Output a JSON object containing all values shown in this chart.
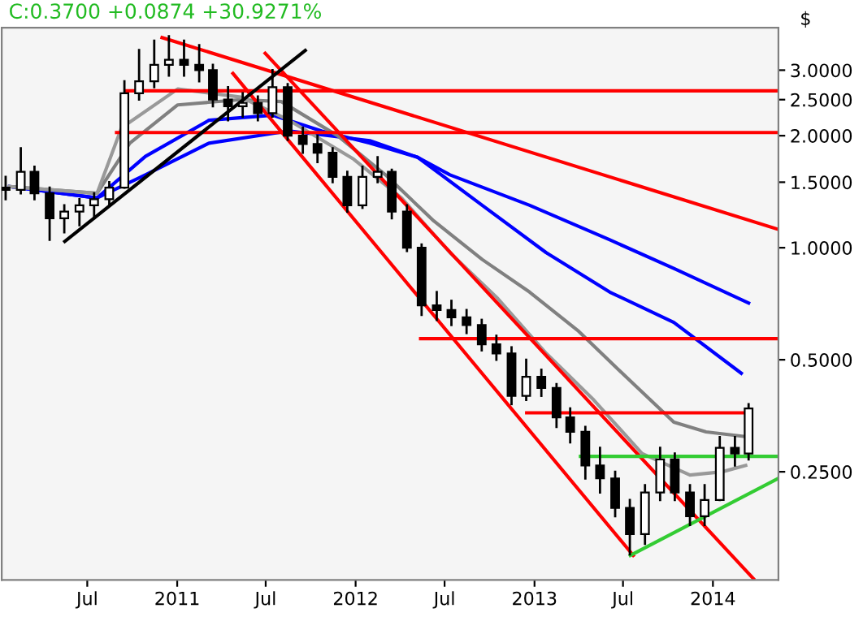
{
  "chart_data": {
    "type": "candlestick",
    "title": "C:0.3700 +0.0874 +30.9271%",
    "ylabel": "$",
    "x": [
      "2010-01-15",
      "2010-02-15",
      "2010-03-15",
      "2010-04-15",
      "2010-05-15",
      "2010-06-15",
      "2010-07-15",
      "2010-08-15",
      "2010-09-15",
      "2010-10-15",
      "2010-11-15",
      "2010-12-15",
      "2011-01-15",
      "2011-02-15",
      "2011-03-15",
      "2011-04-15",
      "2011-05-15",
      "2011-06-15",
      "2011-07-15",
      "2011-08-15",
      "2011-09-15",
      "2011-10-15",
      "2011-11-15",
      "2011-12-15",
      "2012-01-15",
      "2012-02-15",
      "2012-03-15",
      "2012-04-15",
      "2012-05-15",
      "2012-06-15",
      "2012-07-15",
      "2012-08-15",
      "2012-09-15",
      "2012-10-15",
      "2012-11-15",
      "2012-12-15",
      "2013-01-15",
      "2013-02-15",
      "2013-03-15",
      "2013-04-15",
      "2013-05-15",
      "2013-06-15",
      "2013-07-15",
      "2013-08-15",
      "2013-09-15",
      "2013-10-15",
      "2013-11-15",
      "2013-12-15",
      "2014-01-15",
      "2014-02-15",
      "2014-03-15"
    ],
    "ohlc": [
      [
        1.45,
        1.55,
        1.35,
        1.43
      ],
      [
        1.43,
        1.85,
        1.4,
        1.6
      ],
      [
        1.6,
        1.65,
        1.35,
        1.4
      ],
      [
        1.4,
        1.45,
        1.05,
        1.2
      ],
      [
        1.2,
        1.3,
        1.1,
        1.25
      ],
      [
        1.25,
        1.35,
        1.15,
        1.3
      ],
      [
        1.3,
        1.4,
        1.2,
        1.35
      ],
      [
        1.35,
        1.5,
        1.3,
        1.45
      ],
      [
        1.45,
        2.8,
        1.45,
        2.6
      ],
      [
        2.6,
        3.4,
        2.5,
        2.8
      ],
      [
        2.8,
        3.6,
        2.7,
        3.1
      ],
      [
        3.1,
        3.7,
        2.9,
        3.2
      ],
      [
        3.2,
        3.6,
        2.9,
        3.1
      ],
      [
        3.1,
        3.5,
        2.8,
        3.0
      ],
      [
        3.0,
        3.1,
        2.4,
        2.5
      ],
      [
        2.5,
        2.7,
        2.2,
        2.4
      ],
      [
        2.4,
        2.6,
        2.25,
        2.45
      ],
      [
        2.45,
        2.55,
        2.2,
        2.3
      ],
      [
        2.3,
        3.0,
        2.25,
        2.7
      ],
      [
        2.7,
        2.75,
        1.95,
        2.0
      ],
      [
        2.0,
        2.1,
        1.8,
        1.9
      ],
      [
        1.9,
        2.0,
        1.7,
        1.8
      ],
      [
        1.8,
        1.85,
        1.5,
        1.55
      ],
      [
        1.55,
        1.6,
        1.25,
        1.3
      ],
      [
        1.3,
        1.65,
        1.28,
        1.55
      ],
      [
        1.55,
        1.75,
        1.5,
        1.6
      ],
      [
        1.6,
        1.62,
        1.2,
        1.25
      ],
      [
        1.25,
        1.3,
        0.98,
        1.0
      ],
      [
        1.0,
        1.02,
        0.66,
        0.7
      ],
      [
        0.7,
        0.76,
        0.64,
        0.68
      ],
      [
        0.68,
        0.72,
        0.62,
        0.65
      ],
      [
        0.65,
        0.68,
        0.59,
        0.62
      ],
      [
        0.62,
        0.64,
        0.53,
        0.55
      ],
      [
        0.55,
        0.58,
        0.5,
        0.52
      ],
      [
        0.52,
        0.54,
        0.38,
        0.4
      ],
      [
        0.4,
        0.5,
        0.39,
        0.45
      ],
      [
        0.45,
        0.47,
        0.4,
        0.42
      ],
      [
        0.42,
        0.43,
        0.33,
        0.35
      ],
      [
        0.35,
        0.37,
        0.3,
        0.32
      ],
      [
        0.32,
        0.33,
        0.24,
        0.26
      ],
      [
        0.26,
        0.29,
        0.22,
        0.24
      ],
      [
        0.24,
        0.25,
        0.19,
        0.2
      ],
      [
        0.2,
        0.21,
        0.15,
        0.17
      ],
      [
        0.17,
        0.23,
        0.16,
        0.22
      ],
      [
        0.22,
        0.29,
        0.21,
        0.27
      ],
      [
        0.27,
        0.28,
        0.21,
        0.22
      ],
      [
        0.22,
        0.23,
        0.18,
        0.19
      ],
      [
        0.19,
        0.23,
        0.18,
        0.21
      ],
      [
        0.21,
        0.31,
        0.21,
        0.29
      ],
      [
        0.29,
        0.31,
        0.26,
        0.28
      ],
      [
        0.28,
        0.38,
        0.27,
        0.37
      ]
    ],
    "series": [
      {
        "type": "line",
        "color": "#0000ff",
        "x": [
          "2010-01-23",
          "2010-07-21",
          "2010-10-28",
          "2011-03-07",
          "2011-08-18",
          "2012-01-30",
          "2012-05-07",
          "2012-07-12",
          "2012-12-22",
          "2013-06-04",
          "2013-10-13",
          "2014-03-15"
        ],
        "values": [
          1.46,
          1.36,
          1.57,
          1.91,
          2.06,
          1.94,
          1.75,
          1.57,
          1.3,
          1.05,
          0.88,
          0.71
        ]
      },
      {
        "type": "line",
        "color": "#0000ff",
        "x": [
          "2010-01-23",
          "2010-07-21",
          "2010-10-28",
          "2011-03-07",
          "2011-07-16",
          "2011-10-23",
          "2012-01-30",
          "2012-05-07",
          "2012-09-16",
          "2013-01-25",
          "2013-06-04",
          "2013-10-13",
          "2014-02-28"
        ],
        "values": [
          1.46,
          1.36,
          1.76,
          2.2,
          2.27,
          2.06,
          1.91,
          1.75,
          1.3,
          0.97,
          0.76,
          0.63,
          0.46
        ]
      },
      {
        "type": "line",
        "color": "#808080",
        "x": [
          "2010-01-23",
          "2010-07-21",
          "2010-09-26",
          "2011-01-02",
          "2011-05-11",
          "2011-08-02",
          "2011-11-25",
          "2012-03-02",
          "2012-06-09",
          "2012-09-16",
          "2012-12-22",
          "2013-03-30",
          "2013-07-07",
          "2013-10-13",
          "2013-12-18",
          "2014-03-15"
        ],
        "values": [
          1.46,
          1.4,
          1.91,
          2.42,
          2.5,
          2.47,
          2.0,
          1.57,
          1.18,
          0.93,
          0.76,
          0.6,
          0.45,
          0.34,
          0.32,
          0.31
        ]
      },
      {
        "type": "line",
        "color": "#999999",
        "x": [
          "2010-01-23",
          "2010-07-21",
          "2010-09-09",
          "2011-01-02",
          "2011-05-11",
          "2011-08-18",
          "2011-12-28",
          "2012-04-04",
          "2012-07-12",
          "2012-10-18",
          "2013-01-25",
          "2013-05-02",
          "2013-08-09",
          "2013-11-15",
          "2014-01-20",
          "2014-03-09"
        ],
        "values": [
          1.46,
          1.4,
          2.1,
          2.67,
          2.54,
          2.2,
          1.73,
          1.36,
          0.97,
          0.73,
          0.52,
          0.39,
          0.28,
          0.245,
          0.25,
          0.26
        ]
      },
      {
        "type": "line",
        "color": "#ff0000",
        "x": [
          "2011-04-25",
          "2013-07-22"
        ],
        "values": [
          2.94,
          0.149
        ]
      },
      {
        "type": "line",
        "color": "#ff0000",
        "x": [
          "2011-06-30",
          "2014-03-25"
        ],
        "values": [
          3.33,
          0.129
        ]
      },
      {
        "type": "line",
        "color": "#ff0000",
        "x": [
          "2010-12-01",
          "2014-05-15"
        ],
        "values": [
          3.67,
          1.12
        ]
      },
      {
        "type": "line",
        "color": "#ff0000",
        "x": [
          "2010-09-19",
          "2014-05-15"
        ],
        "values": [
          2.64,
          2.64
        ]
      },
      {
        "type": "line",
        "color": "#ff0000",
        "x": [
          "2010-08-30",
          "2014-05-15"
        ],
        "values": [
          2.04,
          2.04
        ]
      },
      {
        "type": "line",
        "color": "#ff0000",
        "x": [
          "2012-05-13",
          "2014-05-15"
        ],
        "values": [
          0.57,
          0.57
        ]
      },
      {
        "type": "line",
        "color": "#ff0000",
        "x": [
          "2012-12-16",
          "2014-03-09"
        ],
        "values": [
          0.36,
          0.36
        ]
      },
      {
        "type": "line",
        "color": "#33cc33",
        "x": [
          "2013-04-05",
          "2014-05-15"
        ],
        "values": [
          0.275,
          0.275
        ]
      },
      {
        "type": "line",
        "color": "#33cc33",
        "x": [
          "2013-07-16",
          "2014-05-15"
        ],
        "values": [
          0.149,
          0.24
        ]
      },
      {
        "type": "line",
        "color": "#000000",
        "x": [
          "2010-05-16",
          "2011-09-20"
        ],
        "values": [
          1.04,
          3.39
        ]
      }
    ],
    "log": "y",
    "xlim": [
      "2010-01-07",
      "2014-05-15"
    ],
    "ylim": [
      0.128,
      3.9
    ],
    "xticks": [
      {
        "value": "2010-07-01",
        "label": "Jul"
      },
      {
        "value": "2011-01-01",
        "label": "2011"
      },
      {
        "value": "2011-07-01",
        "label": "Jul"
      },
      {
        "value": "2012-01-01",
        "label": "2012"
      },
      {
        "value": "2012-07-01",
        "label": "Jul"
      },
      {
        "value": "2013-01-01",
        "label": "2013"
      },
      {
        "value": "2013-07-01",
        "label": "Jul"
      },
      {
        "value": "2014-01-01",
        "label": "2014"
      }
    ],
    "yticks": [
      {
        "value": 0.25,
        "label": "0.2500"
      },
      {
        "value": 0.5,
        "label": "0.5000"
      },
      {
        "value": 1,
        "label": "1.0000"
      },
      {
        "value": 1.5,
        "label": "1.5000"
      },
      {
        "value": 2,
        "label": "2.0000"
      },
      {
        "value": 2.5,
        "label": "2.5000"
      },
      {
        "value": 3,
        "label": "3.0000"
      }
    ],
    "grid": false,
    "legend": false
  }
}
